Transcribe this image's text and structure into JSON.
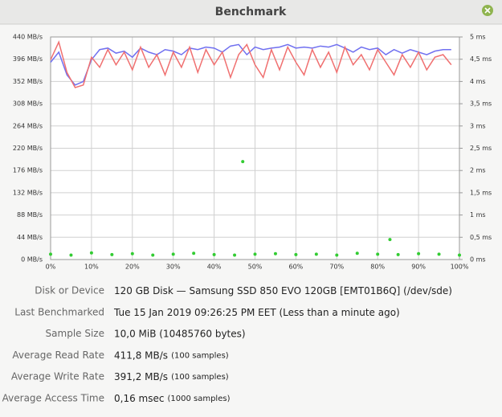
{
  "header": {
    "title": "Benchmark"
  },
  "chart_data": {
    "type": "line",
    "x": [
      0,
      2,
      4,
      6,
      8,
      10,
      12,
      14,
      16,
      18,
      20,
      22,
      24,
      26,
      28,
      30,
      32,
      34,
      36,
      38,
      40,
      42,
      44,
      46,
      48,
      50,
      52,
      54,
      56,
      58,
      60,
      62,
      64,
      66,
      68,
      70,
      72,
      74,
      76,
      78,
      80,
      82,
      84,
      86,
      88,
      90,
      92,
      94,
      96,
      98
    ],
    "xlim": [
      0,
      100
    ],
    "xticks": [
      {
        "value": 0,
        "label": "0%"
      },
      {
        "value": 10,
        "label": "10%"
      },
      {
        "value": 20,
        "label": "20%"
      },
      {
        "value": 30,
        "label": "30%"
      },
      {
        "value": 40,
        "label": "40%"
      },
      {
        "value": 50,
        "label": "50%"
      },
      {
        "value": 60,
        "label": "60%"
      },
      {
        "value": 70,
        "label": "70%"
      },
      {
        "value": 80,
        "label": "80%"
      },
      {
        "value": 90,
        "label": "90%"
      },
      {
        "value": 100,
        "label": "100%"
      }
    ],
    "ylim": [
      0,
      440
    ],
    "yticks": [
      {
        "value": 0,
        "label": "0 MB/s"
      },
      {
        "value": 44,
        "label": "44 MB/s"
      },
      {
        "value": 88,
        "label": "88 MB/s"
      },
      {
        "value": 132,
        "label": "132 MB/s"
      },
      {
        "value": 176,
        "label": "176 MB/s"
      },
      {
        "value": 220,
        "label": "220 MB/s"
      },
      {
        "value": 264,
        "label": "264 MB/s"
      },
      {
        "value": 308,
        "label": "308 MB/s"
      },
      {
        "value": 352,
        "label": "352 MB/s"
      },
      {
        "value": 396,
        "label": "396 MB/s"
      },
      {
        "value": 440,
        "label": "440 MB/s"
      }
    ],
    "y2lim": [
      0,
      5
    ],
    "y2ticks": [
      {
        "value": 0,
        "label": "0 ms"
      },
      {
        "value": 0.5,
        "label": "0,5 ms"
      },
      {
        "value": 1,
        "label": "1 ms"
      },
      {
        "value": 1.5,
        "label": "1,5 ms"
      },
      {
        "value": 2,
        "label": "2 ms"
      },
      {
        "value": 2.5,
        "label": "2,5 ms"
      },
      {
        "value": 3,
        "label": "3 ms"
      },
      {
        "value": 3.5,
        "label": "3,5 ms"
      },
      {
        "value": 4,
        "label": "4 ms"
      },
      {
        "value": 4.5,
        "label": "4,5 ms"
      },
      {
        "value": 5,
        "label": "5 ms"
      }
    ],
    "grid": true,
    "series": [
      {
        "color": "#7070f0",
        "values": [
          390,
          410,
          365,
          345,
          352,
          395,
          415,
          418,
          408,
          412,
          400,
          418,
          410,
          405,
          415,
          412,
          405,
          418,
          415,
          420,
          418,
          410,
          422,
          425,
          405,
          420,
          415,
          418,
          420,
          425,
          418,
          420,
          418,
          422,
          420,
          425,
          418,
          410,
          420,
          415,
          418,
          405,
          415,
          408,
          415,
          410,
          405,
          412,
          415,
          415
        ]
      },
      {
        "color": "#f07070",
        "values": [
          395,
          430,
          370,
          340,
          345,
          400,
          380,
          415,
          385,
          410,
          375,
          420,
          380,
          405,
          365,
          410,
          380,
          420,
          370,
          415,
          385,
          410,
          360,
          405,
          425,
          385,
          360,
          415,
          375,
          420,
          390,
          365,
          415,
          380,
          410,
          370,
          420,
          385,
          405,
          375,
          415,
          390,
          365,
          405,
          380,
          410,
          375,
          400,
          405,
          385
        ]
      },
      {
        "type": "scatter",
        "axis": "y2",
        "color": "#33cc33",
        "x": [
          0,
          5,
          10,
          15,
          20,
          25,
          30,
          35,
          40,
          45,
          47,
          50,
          55,
          60,
          65,
          70,
          75,
          80,
          83,
          85,
          90,
          95,
          100
        ],
        "values": [
          0.12,
          0.1,
          0.15,
          0.11,
          0.13,
          0.1,
          0.12,
          0.14,
          0.11,
          0.1,
          2.2,
          0.12,
          0.13,
          0.11,
          0.12,
          0.1,
          0.14,
          0.12,
          0.45,
          0.11,
          0.13,
          0.12,
          0.1
        ]
      }
    ]
  },
  "info": {
    "rows": [
      {
        "label": "Disk or Device",
        "value": "120 GB Disk — Samsung SSD 850 EVO 120GB [EMT01B6Q] (/dev/sde)"
      },
      {
        "label": "Last Benchmarked",
        "value": "Tue 15 Jan 2019 09:26:25 PM EET (Less than a minute ago)"
      },
      {
        "label": "Sample Size",
        "value": "10,0 MiB (10485760 bytes)"
      },
      {
        "label": "Average Read Rate",
        "value": "411,8 MB/s",
        "note": "(100 samples)"
      },
      {
        "label": "Average Write Rate",
        "value": "391,2 MB/s",
        "note": "(100 samples)"
      },
      {
        "label": "Average Access Time",
        "value": "0,16 msec",
        "note": "(1000 samples)"
      }
    ]
  }
}
